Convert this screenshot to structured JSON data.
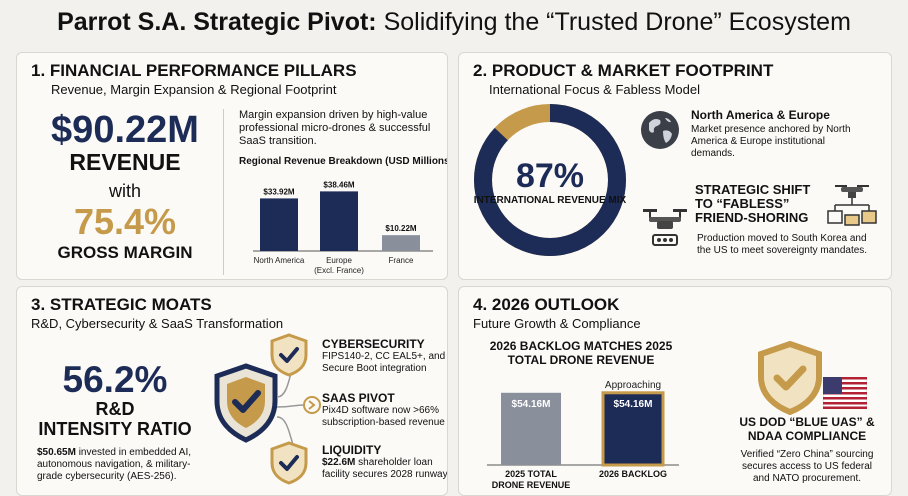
{
  "header": {
    "title_bold": "Parrot S.A. Strategic Pivot:",
    "title_light": "Solidifying the “Trusted Drone” Ecosystem"
  },
  "financial": {
    "heading": "1. FINANCIAL PERFORMANCE PILLARS",
    "subheading": "Revenue, Margin Expansion & Regional Footprint",
    "revenue_value": "$90.22M",
    "revenue_label": "REVENUE",
    "with_label": "with",
    "margin_value": "75.4%",
    "margin_label": "GROSS MARGIN",
    "note": "Margin expansion driven by high-value professional micro-drones & successful SaaS transition.",
    "chart_title": "Regional Revenue Breakdown (USD Millions)"
  },
  "product": {
    "heading": "2. PRODUCT & MARKET FOOTPRINT",
    "subheading": "International Focus & Fabless Model",
    "intl_pct": "87%",
    "intl_label": "INTERNATIONAL REVENUE MIX",
    "intl_fraction": 0.87,
    "na_title": "North America & Europe",
    "na_text": "Market presence anchored by North America & Europe institutional demands.",
    "shift_title": "STRATEGIC SHIFT TO “FABLESS” FRIEND-SHORING",
    "shift_text": "Production moved to South Korea and the US to meet sovereignty mandates.",
    "icons": [
      "globe-icon",
      "drone-icon",
      "drone-network-icon"
    ]
  },
  "moats": {
    "heading": "3. STRATEGIC MOATS",
    "subheading": "R&D, Cybersecurity & SaaS Transformation",
    "rd_pct": "56.2%",
    "rd_line1": "R&D",
    "rd_line2": "INTENSITY RATIO",
    "rd_note_bold": "$50.65M",
    "rd_note_rest": " invested in embedded AI, autonomous navigation, & military-grade cybersecurity (AES-256).",
    "items": [
      {
        "title": "CYBERSECURITY",
        "desc": "FIPS140-2, CC EAL5+, and Secure Boot integration"
      },
      {
        "title": "SAAS PIVOT",
        "desc": "Pix4D software now >66% subscription-based revenue"
      },
      {
        "title": "LIQUIDITY",
        "desc_bold": "$22.6M",
        "desc_rest": " shareholder loan facility secures 2028 runway"
      }
    ]
  },
  "outlook": {
    "heading": "4. 2026 OUTLOOK",
    "subheading": "Future Growth & Compliance",
    "backlog_title": "2026 BACKLOG MATCHES 2025 TOTAL DRONE REVENUE",
    "dod_title": "US DOD “BLUE UAS” & NDAA COMPLIANCE",
    "dod_text": "Verified “Zero China” sourcing secures access to US federal and NATO procurement.",
    "icons": [
      "shield-check-icon",
      "us-flag-icon"
    ]
  },
  "colors": {
    "navy": "#1d2b57",
    "gold": "#c59a4a",
    "gray_bar": "#8a8f9c"
  },
  "chart_data": [
    {
      "type": "bar",
      "title": "Regional Revenue Breakdown (USD Millions)",
      "categories": [
        "North America",
        "Europe (Excl. France)",
        "France"
      ],
      "values": [
        33.92,
        38.46,
        10.22
      ],
      "value_labels": [
        "$33.92M",
        "$38.46M",
        "$10.22M"
      ],
      "ylim": [
        0,
        40
      ]
    },
    {
      "type": "bar",
      "title": "",
      "categories": [
        "2025 TOTAL DRONE REVENUE",
        "2026 BACKLOG"
      ],
      "values": [
        54.16,
        54.16
      ],
      "value_labels": [
        "$54.16M",
        "$54.16M"
      ],
      "annotation": "Approaching",
      "ylim": [
        0,
        60
      ]
    }
  ]
}
